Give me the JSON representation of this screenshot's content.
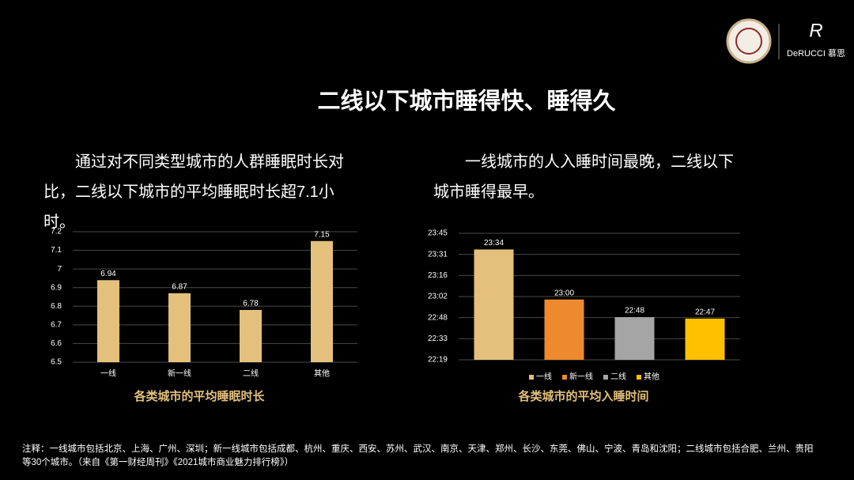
{
  "slide": {
    "title": "二线以下城市睡得快、睡得久",
    "paragraph_left": "通过对不同类型城市的人群睡眠时长对比，二线以下城市的平均睡眠时长超7.1小时。",
    "paragraph_right": "一线城市的人入睡时间最晚，二线以下城市睡得最早。",
    "footnote": "注释：一线城市包括北京、上海、广州、深圳；新一线城市包括成都、杭州、重庆、西安、苏州、武汉、南京、天津、郑州、长沙、东莞、佛山、宁波、青岛和沈阳；二线城市包括合肥、兰州、贵阳等30个城市。（来自《第一财经周刊》《2021城市商业魅力排行榜》）",
    "brand": "DeRUCCI 慕思"
  },
  "chart_data": [
    {
      "type": "bar",
      "title": "各类城市的平均睡眠时长",
      "categories": [
        "一线",
        "新一线",
        "二线",
        "其他"
      ],
      "values": [
        6.94,
        6.87,
        6.78,
        7.15
      ],
      "color": "#e3c07c",
      "ylim": [
        6.5,
        7.2
      ],
      "yticks": [
        6.5,
        6.6,
        6.7,
        6.8,
        6.9,
        7,
        7.1,
        7.2
      ],
      "grid": true,
      "legend": false
    },
    {
      "type": "bar",
      "title": "各类城市的平均入睡时间",
      "categories": [
        "一线",
        "新一线",
        "二线",
        "其他"
      ],
      "values": [
        1414,
        1380,
        1368,
        1367
      ],
      "value_labels": [
        "23:34",
        "23:00",
        "22:48",
        "22:47"
      ],
      "colors": [
        "#e3c07c",
        "#ee8a2e",
        "#a5a5a5",
        "#ffc000"
      ],
      "ylim": [
        1339,
        1425
      ],
      "yticks": [
        {
          "value": 1339,
          "label": "22:19"
        },
        {
          "value": 1353.33,
          "label": "22:33"
        },
        {
          "value": 1367.67,
          "label": "22:48"
        },
        {
          "value": 1382,
          "label": "23:02"
        },
        {
          "value": 1396.33,
          "label": "23:16"
        },
        {
          "value": 1410.67,
          "label": "23:31"
        },
        {
          "value": 1425,
          "label": "23:45"
        }
      ],
      "grid": true,
      "legend": "bottom"
    }
  ]
}
